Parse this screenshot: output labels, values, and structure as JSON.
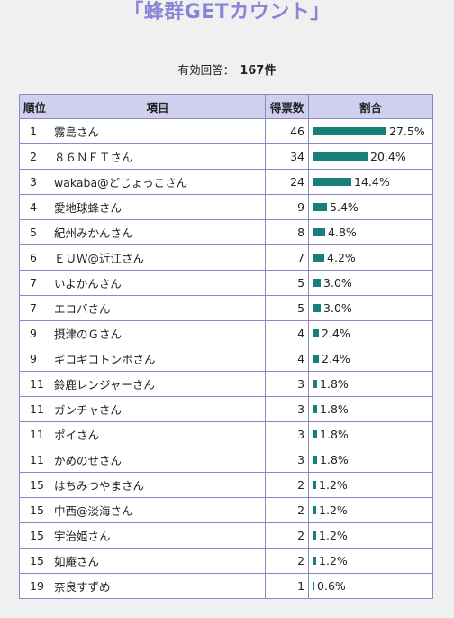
{
  "title": "「蜂群GETカウント」",
  "summary": {
    "label": "有効回答：",
    "count": "167件"
  },
  "headers": {
    "rank": "順位",
    "item": "項目",
    "votes": "得票数",
    "ratio": "割合"
  },
  "colors": {
    "title": "#8a84d6",
    "header_bg": "#cfcfee",
    "border": "#8c88c8",
    "bar": "#177f78"
  },
  "rows": [
    {
      "rank": "1",
      "item": "霧島さん",
      "votes": "46",
      "pct_text": "27.5%",
      "pct": 27.5
    },
    {
      "rank": "2",
      "item": "８６ＮＥＴさん",
      "votes": "34",
      "pct_text": "20.4%",
      "pct": 20.4
    },
    {
      "rank": "3",
      "item": "wakaba@どじょっこさん",
      "votes": "24",
      "pct_text": "14.4%",
      "pct": 14.4
    },
    {
      "rank": "4",
      "item": "愛地球蜂さん",
      "votes": "9",
      "pct_text": "5.4%",
      "pct": 5.4
    },
    {
      "rank": "5",
      "item": "紀州みかんさん",
      "votes": "8",
      "pct_text": "4.8%",
      "pct": 4.8
    },
    {
      "rank": "6",
      "item": "ＥＵＷ@近江さん",
      "votes": "7",
      "pct_text": "4.2%",
      "pct": 4.2
    },
    {
      "rank": "7",
      "item": "いよかんさん",
      "votes": "5",
      "pct_text": "3.0%",
      "pct": 3.0
    },
    {
      "rank": "7",
      "item": "エコバさん",
      "votes": "5",
      "pct_text": "3.0%",
      "pct": 3.0
    },
    {
      "rank": "9",
      "item": "摂津のＧさん",
      "votes": "4",
      "pct_text": "2.4%",
      "pct": 2.4
    },
    {
      "rank": "9",
      "item": "ギコギコトンボさん",
      "votes": "4",
      "pct_text": "2.4%",
      "pct": 2.4
    },
    {
      "rank": "11",
      "item": "鈴鹿レンジャーさん",
      "votes": "3",
      "pct_text": "1.8%",
      "pct": 1.8
    },
    {
      "rank": "11",
      "item": "ガンチャさん",
      "votes": "3",
      "pct_text": "1.8%",
      "pct": 1.8
    },
    {
      "rank": "11",
      "item": "ポイさん",
      "votes": "3",
      "pct_text": "1.8%",
      "pct": 1.8
    },
    {
      "rank": "11",
      "item": "かめのせさん",
      "votes": "3",
      "pct_text": "1.8%",
      "pct": 1.8
    },
    {
      "rank": "15",
      "item": "はちみつやまさん",
      "votes": "2",
      "pct_text": "1.2%",
      "pct": 1.2
    },
    {
      "rank": "15",
      "item": "中西@淡海さん",
      "votes": "2",
      "pct_text": "1.2%",
      "pct": 1.2
    },
    {
      "rank": "15",
      "item": "宇治姫さん",
      "votes": "2",
      "pct_text": "1.2%",
      "pct": 1.2
    },
    {
      "rank": "15",
      "item": "如庵さん",
      "votes": "2",
      "pct_text": "1.2%",
      "pct": 1.2
    },
    {
      "rank": "19",
      "item": "奈良すずめ",
      "votes": "1",
      "pct_text": "0.6%",
      "pct": 0.6
    }
  ]
}
